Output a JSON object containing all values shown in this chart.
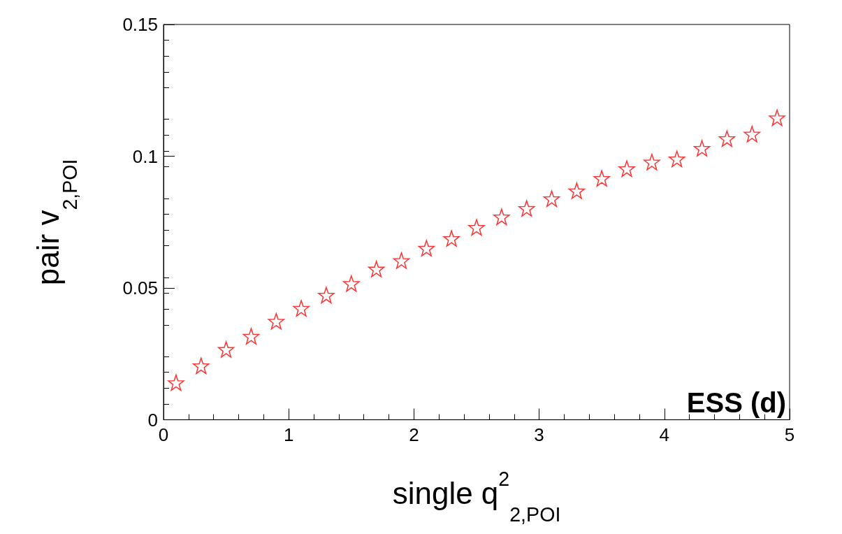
{
  "chart_data": {
    "type": "scatter",
    "xlabel": "single q$^{2}$$_{2,POI}$",
    "ylabel": "pair v$_{2,POI}$",
    "annotations": [
      "ESS (d)"
    ],
    "x": [
      0.1,
      0.3,
      0.5,
      0.7,
      0.9,
      1.1,
      1.3,
      1.5,
      1.7,
      1.9,
      2.1,
      2.3,
      2.5,
      2.7,
      2.9,
      3.1,
      3.3,
      3.5,
      3.7,
      3.9,
      4.1,
      4.3,
      4.5,
      4.7,
      4.9
    ],
    "series": [
      {
        "color": "#ff0000",
        "values": [
          0.0141,
          0.0205,
          0.0267,
          0.0317,
          0.0374,
          0.0423,
          0.0473,
          0.0517,
          0.0572,
          0.0604,
          0.0651,
          0.0688,
          0.073,
          0.077,
          0.0802,
          0.0839,
          0.0869,
          0.0916,
          0.0953,
          0.0978,
          0.099,
          0.103,
          0.1067,
          0.1084,
          0.1146
        ]
      }
    ],
    "xlim": [
      0,
      5
    ],
    "xticks": [
      0,
      1,
      2,
      3,
      4,
      5
    ],
    "ylim": [
      0,
      0.15
    ],
    "yticks": [
      0,
      0.05,
      0.1,
      0.15
    ],
    "grid": false,
    "marker": "star"
  }
}
